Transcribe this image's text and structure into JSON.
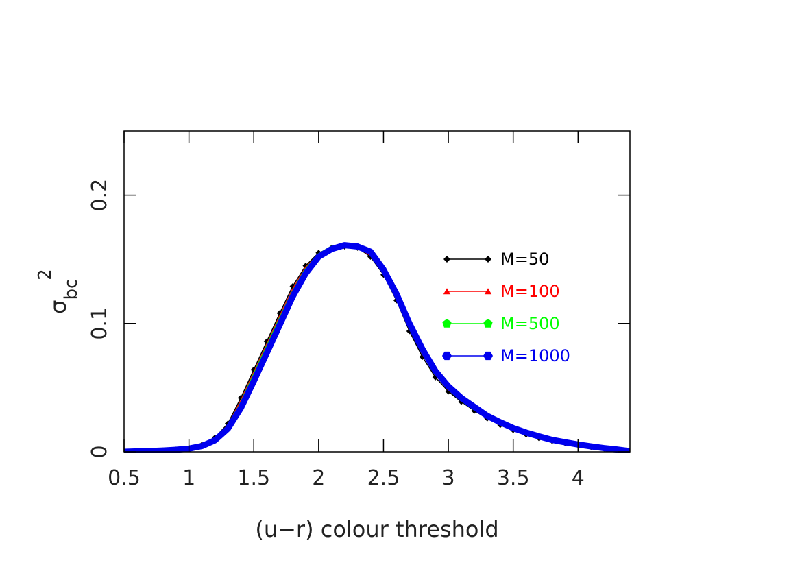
{
  "chart_data": {
    "type": "line",
    "title": "",
    "xlabel": "(u−r) colour threshold",
    "ylabel": {
      "base": "σ",
      "subscript": "bc",
      "superscript": "2"
    },
    "xlim": [
      0.5,
      4.4
    ],
    "ylim": [
      0,
      0.25
    ],
    "xticks": [
      0.5,
      1,
      1.5,
      2,
      2.5,
      3,
      3.5,
      4
    ],
    "xtick_labels": [
      "0.5",
      "1",
      "1.5",
      "2",
      "2.5",
      "3",
      "3.5",
      "4"
    ],
    "yticks": [
      0,
      0.1,
      0.2
    ],
    "ytick_labels": [
      "0",
      "0.1",
      "0.2"
    ],
    "grid": false,
    "legend_position": "right",
    "x": [
      0.5,
      0.6,
      0.7,
      0.8,
      0.9,
      1.0,
      1.1,
      1.2,
      1.3,
      1.4,
      1.5,
      1.6,
      1.7,
      1.8,
      1.9,
      2.0,
      2.1,
      2.2,
      2.3,
      2.4,
      2.5,
      2.6,
      2.7,
      2.8,
      2.9,
      3.0,
      3.1,
      3.2,
      3.3,
      3.4,
      3.5,
      3.6,
      3.7,
      3.8,
      3.9,
      4.0,
      4.1,
      4.2,
      4.3,
      4.4
    ],
    "series": [
      {
        "name": "M=50",
        "color": "#000000",
        "marker": "diamond",
        "values": [
          0.0,
          0.0003,
          0.0006,
          0.001,
          0.0017,
          0.0028,
          0.0055,
          0.011,
          0.022,
          0.042,
          0.064,
          0.086,
          0.108,
          0.129,
          0.145,
          0.155,
          0.159,
          0.16,
          0.159,
          0.152,
          0.138,
          0.118,
          0.094,
          0.074,
          0.058,
          0.047,
          0.039,
          0.032,
          0.026,
          0.021,
          0.017,
          0.0135,
          0.0105,
          0.0085,
          0.0068,
          0.0052,
          0.0038,
          0.0026,
          0.0016,
          0.0005
        ]
      },
      {
        "name": "M=100",
        "color": "#ff0000",
        "marker": "triangle",
        "values": [
          0.0,
          0.0003,
          0.0006,
          0.001,
          0.0017,
          0.0028,
          0.0052,
          0.0105,
          0.021,
          0.04,
          0.062,
          0.084,
          0.106,
          0.127,
          0.144,
          0.154,
          0.159,
          0.16,
          0.159,
          0.153,
          0.139,
          0.12,
          0.096,
          0.076,
          0.06,
          0.048,
          0.04,
          0.033,
          0.027,
          0.022,
          0.0175,
          0.014,
          0.011,
          0.0088,
          0.007,
          0.0054,
          0.004,
          0.0027,
          0.0017,
          0.0005
        ]
      },
      {
        "name": "M=500",
        "color": "#00ff00",
        "marker": "pentagon",
        "values": [
          0.0,
          0.0003,
          0.0006,
          0.001,
          0.0016,
          0.0026,
          0.0048,
          0.0095,
          0.019,
          0.036,
          0.058,
          0.08,
          0.102,
          0.123,
          0.141,
          0.153,
          0.159,
          0.161,
          0.16,
          0.155,
          0.141,
          0.122,
          0.099,
          0.079,
          0.062,
          0.05,
          0.041,
          0.034,
          0.028,
          0.0225,
          0.018,
          0.0145,
          0.0115,
          0.009,
          0.0072,
          0.0056,
          0.0041,
          0.0028,
          0.0017,
          0.0005
        ]
      },
      {
        "name": "M=1000",
        "color": "#0000ee",
        "marker": "hexagon",
        "values": [
          0.0,
          0.0003,
          0.0006,
          0.001,
          0.0016,
          0.0025,
          0.0045,
          0.009,
          0.018,
          0.034,
          0.055,
          0.077,
          0.099,
          0.121,
          0.139,
          0.152,
          0.158,
          0.161,
          0.16,
          0.156,
          0.142,
          0.123,
          0.1,
          0.08,
          0.063,
          0.051,
          0.042,
          0.035,
          0.028,
          0.023,
          0.0185,
          0.015,
          0.012,
          0.0093,
          0.0074,
          0.0057,
          0.0042,
          0.0029,
          0.0018,
          0.0005
        ]
      }
    ]
  }
}
